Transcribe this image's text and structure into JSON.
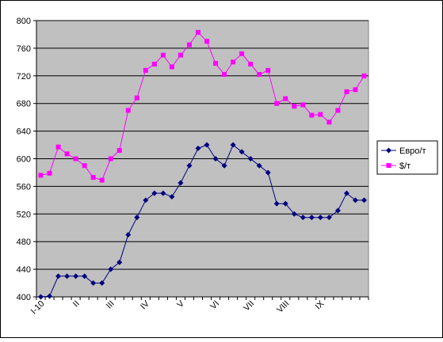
{
  "chart_data": {
    "type": "line",
    "title": "",
    "xlabel": "",
    "ylabel": "",
    "ylim": [
      400,
      800
    ],
    "y_ticks": [
      400,
      440,
      480,
      520,
      560,
      600,
      640,
      680,
      720,
      760,
      800
    ],
    "x_tick_labels": [
      "I-10",
      "II",
      "III",
      "IV",
      "V",
      "VI",
      "VII",
      "VIII",
      "IX"
    ],
    "x_tick_positions": [
      0,
      4,
      8,
      12,
      16,
      20,
      24,
      28,
      32
    ],
    "grid": "horizontal",
    "legend_position": "right",
    "plot_background": "#c0c0c0",
    "series": [
      {
        "name": "Евро/т",
        "color": "#000080",
        "marker": "diamond",
        "values": [
          400,
          401,
          430,
          430,
          430,
          430,
          420,
          420,
          440,
          450,
          490,
          515,
          540,
          550,
          550,
          545,
          565,
          590,
          615,
          620,
          600,
          590,
          620,
          610,
          600,
          590,
          580,
          535,
          535,
          520,
          515,
          515,
          515,
          515,
          525,
          550,
          540,
          540
        ]
      },
      {
        "name": "$/т",
        "color": "#ff00ff",
        "marker": "square",
        "values": [
          576,
          579,
          617,
          607,
          600,
          590,
          573,
          569,
          600,
          612,
          670,
          688,
          728,
          737,
          750,
          733,
          750,
          765,
          783,
          770,
          738,
          722,
          740,
          752,
          737,
          722,
          728,
          680,
          687,
          676,
          678,
          663,
          664,
          653,
          670,
          697,
          700,
          720
        ]
      }
    ]
  }
}
